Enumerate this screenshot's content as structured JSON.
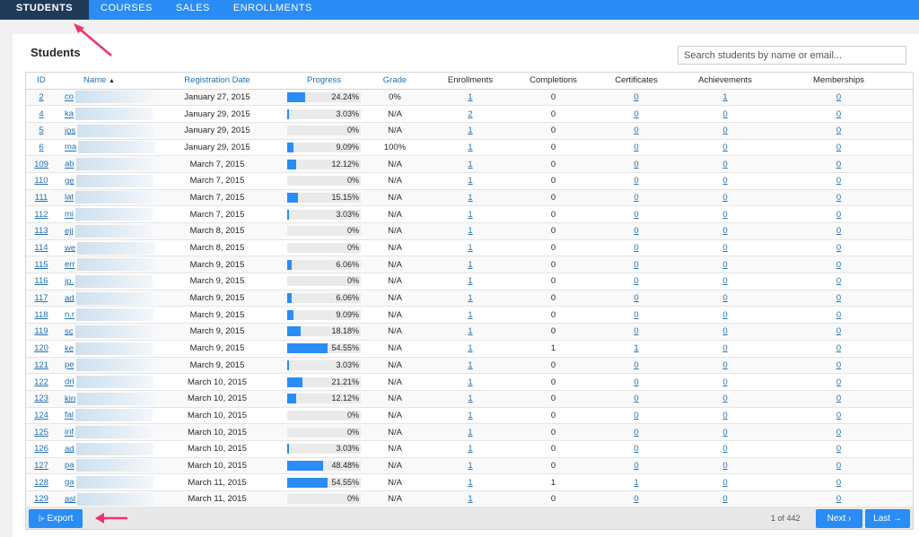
{
  "nav": {
    "tabs": [
      {
        "label": "STUDENTS",
        "active": true
      },
      {
        "label": "COURSES",
        "active": false
      },
      {
        "label": "SALES",
        "active": false
      },
      {
        "label": "ENROLLMENTS",
        "active": false
      }
    ]
  },
  "panel": {
    "title": "Students",
    "search_placeholder": "Search students by name or email..."
  },
  "table": {
    "headers": {
      "id": "ID",
      "name": "Name",
      "name_sort": "▲",
      "reg": "Registration Date",
      "progress": "Progress",
      "grade": "Grade",
      "enrollments": "Enrollments",
      "completions": "Completions",
      "certificates": "Certificates",
      "achievements": "Achievements",
      "memberships": "Memberships"
    },
    "rows": [
      {
        "id": "2",
        "name": "co",
        "date": "January 27, 2015",
        "progress": 24.24,
        "pct": "24.24%",
        "grade": "0%",
        "enr": "1",
        "comp": "0",
        "cert": "0",
        "ach": "1",
        "mem": "0"
      },
      {
        "id": "4",
        "name": "ka",
        "date": "January 29, 2015",
        "progress": 3.03,
        "pct": "3.03%",
        "grade": "N/A",
        "enr": "2",
        "comp": "0",
        "cert": "0",
        "ach": "0",
        "mem": "0"
      },
      {
        "id": "5",
        "name": "jos",
        "date": "January 29, 2015",
        "progress": 0,
        "pct": "0%",
        "grade": "N/A",
        "enr": "1",
        "comp": "0",
        "cert": "0",
        "ach": "0",
        "mem": "0"
      },
      {
        "id": "6",
        "name": "ma",
        "date": "January 29, 2015",
        "progress": 9.09,
        "pct": "9.09%",
        "grade": "100%",
        "enr": "1",
        "comp": "0",
        "cert": "0",
        "ach": "0",
        "mem": "0"
      },
      {
        "id": "109",
        "name": "ab",
        "date": "March 7, 2015",
        "progress": 12.12,
        "pct": "12.12%",
        "grade": "N/A",
        "enr": "1",
        "comp": "0",
        "cert": "0",
        "ach": "0",
        "mem": "0"
      },
      {
        "id": "110",
        "name": "ge",
        "date": "March 7, 2015",
        "progress": 0,
        "pct": "0%",
        "grade": "N/A",
        "enr": "1",
        "comp": "0",
        "cert": "0",
        "ach": "0",
        "mem": "0"
      },
      {
        "id": "111",
        "name": "lat",
        "date": "March 7, 2015",
        "progress": 15.15,
        "pct": "15.15%",
        "grade": "N/A",
        "enr": "1",
        "comp": "0",
        "cert": "0",
        "ach": "0",
        "mem": "0"
      },
      {
        "id": "112",
        "name": "mi",
        "date": "March 7, 2015",
        "progress": 3.03,
        "pct": "3.03%",
        "grade": "N/A",
        "enr": "1",
        "comp": "0",
        "cert": "0",
        "ach": "0",
        "mem": "0"
      },
      {
        "id": "113",
        "name": "eji",
        "date": "March 8, 2015",
        "progress": 0,
        "pct": "0%",
        "grade": "N/A",
        "enr": "1",
        "comp": "0",
        "cert": "0",
        "ach": "0",
        "mem": "0"
      },
      {
        "id": "114",
        "name": "we",
        "date": "March 8, 2015",
        "progress": 0,
        "pct": "0%",
        "grade": "N/A",
        "enr": "1",
        "comp": "0",
        "cert": "0",
        "ach": "0",
        "mem": "0"
      },
      {
        "id": "115",
        "name": "err",
        "date": "March 9, 2015",
        "progress": 6.06,
        "pct": "6.06%",
        "grade": "N/A",
        "enr": "1",
        "comp": "0",
        "cert": "0",
        "ach": "0",
        "mem": "0"
      },
      {
        "id": "116",
        "name": "jp.",
        "date": "March 9, 2015",
        "progress": 0,
        "pct": "0%",
        "grade": "N/A",
        "enr": "1",
        "comp": "0",
        "cert": "0",
        "ach": "0",
        "mem": "0"
      },
      {
        "id": "117",
        "name": "ad",
        "date": "March 9, 2015",
        "progress": 6.06,
        "pct": "6.06%",
        "grade": "N/A",
        "enr": "1",
        "comp": "0",
        "cert": "0",
        "ach": "0",
        "mem": "0"
      },
      {
        "id": "118",
        "name": "n.r",
        "date": "March 9, 2015",
        "progress": 9.09,
        "pct": "9.09%",
        "grade": "N/A",
        "enr": "1",
        "comp": "0",
        "cert": "0",
        "ach": "0",
        "mem": "0"
      },
      {
        "id": "119",
        "name": "sc",
        "date": "March 9, 2015",
        "progress": 18.18,
        "pct": "18.18%",
        "grade": "N/A",
        "enr": "1",
        "comp": "0",
        "cert": "0",
        "ach": "0",
        "mem": "0"
      },
      {
        "id": "120",
        "name": "ke",
        "date": "March 9, 2015",
        "progress": 54.55,
        "pct": "54.55%",
        "grade": "N/A",
        "enr": "1",
        "comp": "1",
        "cert": "1",
        "ach": "0",
        "mem": "0"
      },
      {
        "id": "121",
        "name": "pe",
        "date": "March 9, 2015",
        "progress": 3.03,
        "pct": "3.03%",
        "grade": "N/A",
        "enr": "1",
        "comp": "0",
        "cert": "0",
        "ach": "0",
        "mem": "0"
      },
      {
        "id": "122",
        "name": "drl",
        "date": "March 10, 2015",
        "progress": 21.21,
        "pct": "21.21%",
        "grade": "N/A",
        "enr": "1",
        "comp": "0",
        "cert": "0",
        "ach": "0",
        "mem": "0"
      },
      {
        "id": "123",
        "name": "kin",
        "date": "March 10, 2015",
        "progress": 12.12,
        "pct": "12.12%",
        "grade": "N/A",
        "enr": "1",
        "comp": "0",
        "cert": "0",
        "ach": "0",
        "mem": "0"
      },
      {
        "id": "124",
        "name": "fal",
        "date": "March 10, 2015",
        "progress": 0,
        "pct": "0%",
        "grade": "N/A",
        "enr": "1",
        "comp": "0",
        "cert": "0",
        "ach": "0",
        "mem": "0"
      },
      {
        "id": "125",
        "name": "inf",
        "date": "March 10, 2015",
        "progress": 0,
        "pct": "0%",
        "grade": "N/A",
        "enr": "1",
        "comp": "0",
        "cert": "0",
        "ach": "0",
        "mem": "0"
      },
      {
        "id": "126",
        "name": "ad",
        "date": "March 10, 2015",
        "progress": 3.03,
        "pct": "3.03%",
        "grade": "N/A",
        "enr": "1",
        "comp": "0",
        "cert": "0",
        "ach": "0",
        "mem": "0"
      },
      {
        "id": "127",
        "name": "pa",
        "date": "March 10, 2015",
        "progress": 48.48,
        "pct": "48.48%",
        "grade": "N/A",
        "enr": "1",
        "comp": "0",
        "cert": "0",
        "ach": "0",
        "mem": "0"
      },
      {
        "id": "128",
        "name": "ga",
        "date": "March 11, 2015",
        "progress": 54.55,
        "pct": "54.55%",
        "grade": "N/A",
        "enr": "1",
        "comp": "1",
        "cert": "1",
        "ach": "0",
        "mem": "0"
      },
      {
        "id": "129",
        "name": "asl",
        "date": "March 11, 2015",
        "progress": 0,
        "pct": "0%",
        "grade": "N/A",
        "enr": "1",
        "comp": "0",
        "cert": "0",
        "ach": "0",
        "mem": "0"
      }
    ]
  },
  "footer": {
    "export_icon": "funnel-icon",
    "export_glyph": "⩥",
    "export_label": "Export",
    "page_info": "1 of 442",
    "next_label": "Next",
    "next_glyph": "›",
    "last_label": "Last",
    "last_glyph": "→"
  },
  "annotations": {
    "arrow_color": "#f0336b"
  }
}
